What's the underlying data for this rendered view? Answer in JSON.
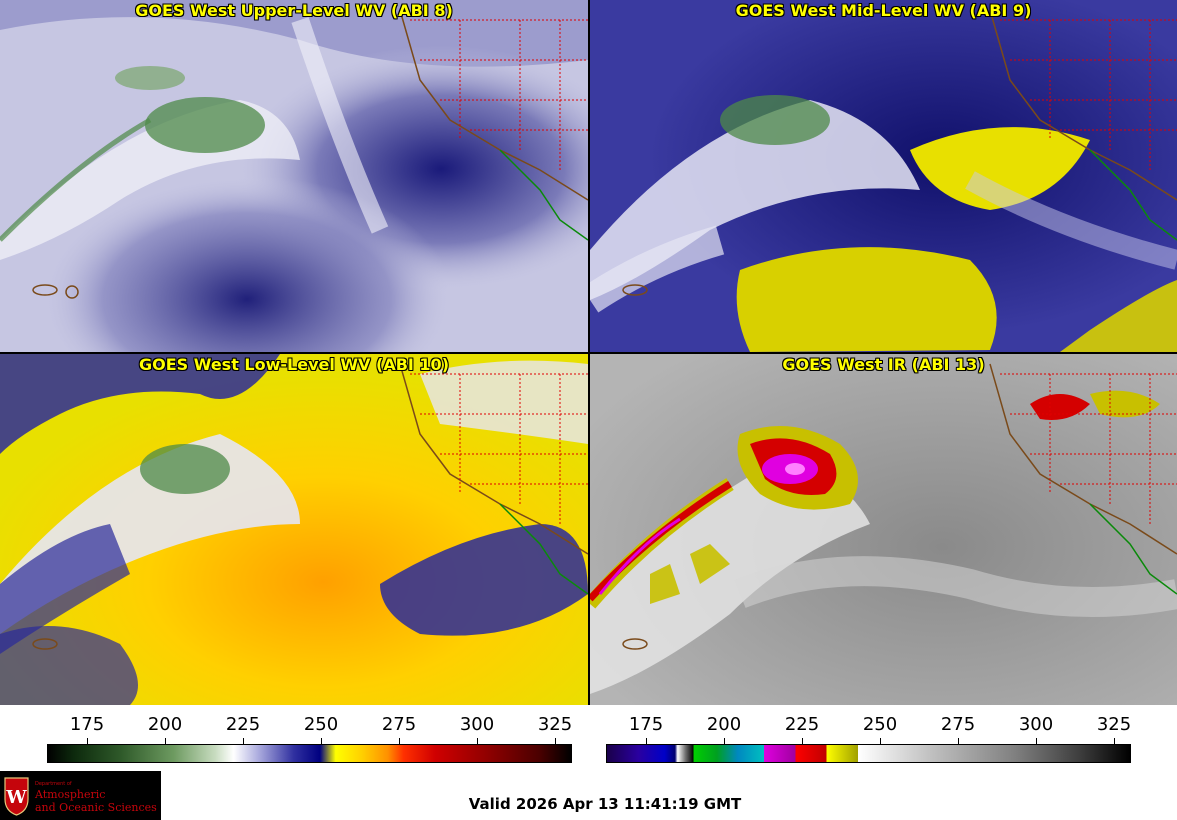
{
  "panels": [
    {
      "id": "upper",
      "title": "GOES West Upper-Level WV (ABI 8)"
    },
    {
      "id": "mid",
      "title": "GOES West Mid-Level WV (ABI 9)"
    },
    {
      "id": "low",
      "title": "GOES West Low-Level WV (ABI 10)"
    },
    {
      "id": "ir",
      "title": "GOES West IR (ABI 13)"
    }
  ],
  "colorbars": {
    "wv": {
      "ticks": [
        "175",
        "200",
        "225",
        "250",
        "275",
        "300",
        "325"
      ]
    },
    "ir": {
      "ticks": [
        "175",
        "200",
        "225",
        "250",
        "275",
        "300",
        "325"
      ]
    }
  },
  "logo": {
    "department": "Department of",
    "line1": "Atmospheric",
    "line2": "and Oceanic Sciences"
  },
  "valid_time": "Valid 2026 Apr 13 11:41:19 GMT",
  "colors": {
    "title": "#ffff00",
    "separator": "#000000",
    "logo_text": "#c5050c"
  }
}
